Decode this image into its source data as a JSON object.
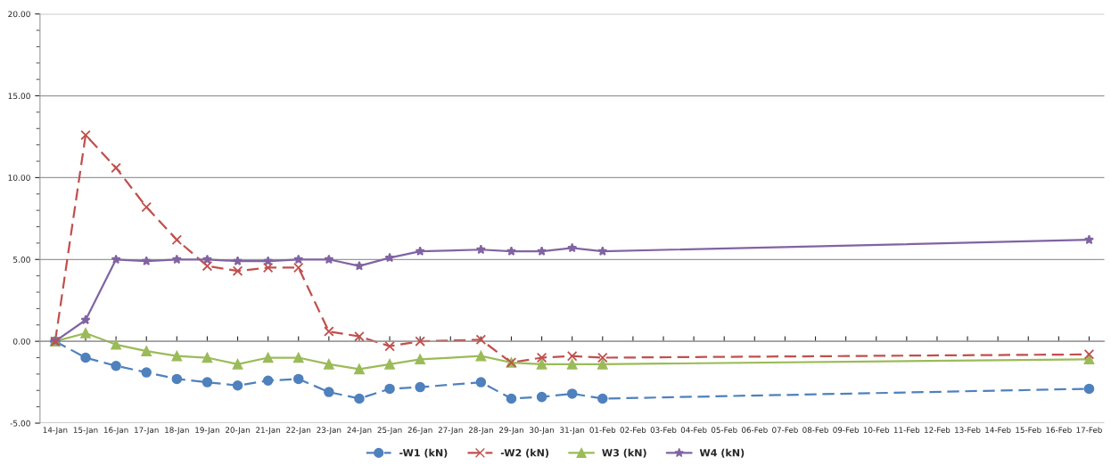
{
  "chart_data": {
    "type": "line",
    "categories": [
      "14-Jan",
      "15-Jan",
      "16-Jan",
      "17-Jan",
      "18-Jan",
      "19-Jan",
      "20-Jan",
      "21-Jan",
      "22-Jan",
      "23-Jan",
      "24-Jan",
      "25-Jan",
      "26-Jan",
      "27-Jan",
      "28-Jan",
      "29-Jan",
      "30-Jan",
      "31-Jan",
      "01-Feb",
      "02-Feb",
      "03-Feb",
      "04-Feb",
      "05-Feb",
      "06-Feb",
      "07-Feb",
      "08-Feb",
      "09-Feb",
      "10-Feb",
      "11-Feb",
      "12-Feb",
      "13-Feb",
      "14-Feb",
      "15-Feb",
      "16-Feb",
      "17-Feb"
    ],
    "series": [
      {
        "name": "-W1 (kN)",
        "color": "#4f81bd",
        "marker": "circle",
        "line_style": "dashed",
        "values": [
          0,
          -1.0,
          -1.5,
          -1.9,
          -2.3,
          -2.5,
          -2.7,
          -2.4,
          -2.3,
          -3.1,
          -3.5,
          -2.9,
          -2.8,
          null,
          -2.5,
          -3.5,
          -3.4,
          -3.2,
          -3.5,
          null,
          null,
          null,
          null,
          null,
          null,
          null,
          null,
          null,
          null,
          null,
          null,
          null,
          null,
          null,
          -2.9
        ]
      },
      {
        "name": "-W2 (kN)",
        "color": "#c0504d",
        "marker": "cross",
        "line_style": "dashed",
        "values": [
          0,
          12.6,
          10.6,
          8.2,
          6.2,
          4.6,
          4.3,
          4.5,
          4.5,
          0.6,
          0.3,
          -0.3,
          0.0,
          null,
          0.1,
          -1.3,
          -1.0,
          -0.9,
          -1.0,
          null,
          null,
          null,
          null,
          null,
          null,
          null,
          null,
          null,
          null,
          null,
          null,
          null,
          null,
          null,
          -0.8
        ]
      },
      {
        "name": "W3 (kN)",
        "color": "#9bbb59",
        "marker": "triangle",
        "line_style": "solid",
        "values": [
          0,
          0.5,
          -0.2,
          -0.6,
          -0.9,
          -1.0,
          -1.4,
          -1.0,
          -1.0,
          -1.4,
          -1.7,
          -1.4,
          -1.1,
          null,
          -0.9,
          -1.3,
          -1.4,
          -1.4,
          -1.4,
          null,
          null,
          null,
          null,
          null,
          null,
          null,
          null,
          null,
          null,
          null,
          null,
          null,
          null,
          null,
          -1.1
        ]
      },
      {
        "name": "W4 (kN)",
        "color": "#8064a2",
        "marker": "star",
        "line_style": "solid",
        "values": [
          0,
          1.3,
          5.0,
          4.9,
          5.0,
          5.0,
          4.9,
          4.9,
          5.0,
          5.0,
          4.6,
          5.1,
          5.5,
          null,
          5.6,
          5.5,
          5.5,
          5.7,
          5.5,
          null,
          null,
          null,
          null,
          null,
          null,
          null,
          null,
          null,
          null,
          null,
          null,
          null,
          null,
          null,
          6.2
        ]
      }
    ],
    "ylim": [
      -5,
      20
    ],
    "yticks": [
      {
        "value": -5,
        "label": "-5.00"
      },
      {
        "value": 0,
        "label": "0.00"
      },
      {
        "value": 5,
        "label": "5.00"
      },
      {
        "value": 10,
        "label": "10.00"
      },
      {
        "value": 15,
        "label": "15.00"
      },
      {
        "value": 20,
        "label": "20.00"
      }
    ],
    "grid": "y",
    "legend": "bottom"
  }
}
